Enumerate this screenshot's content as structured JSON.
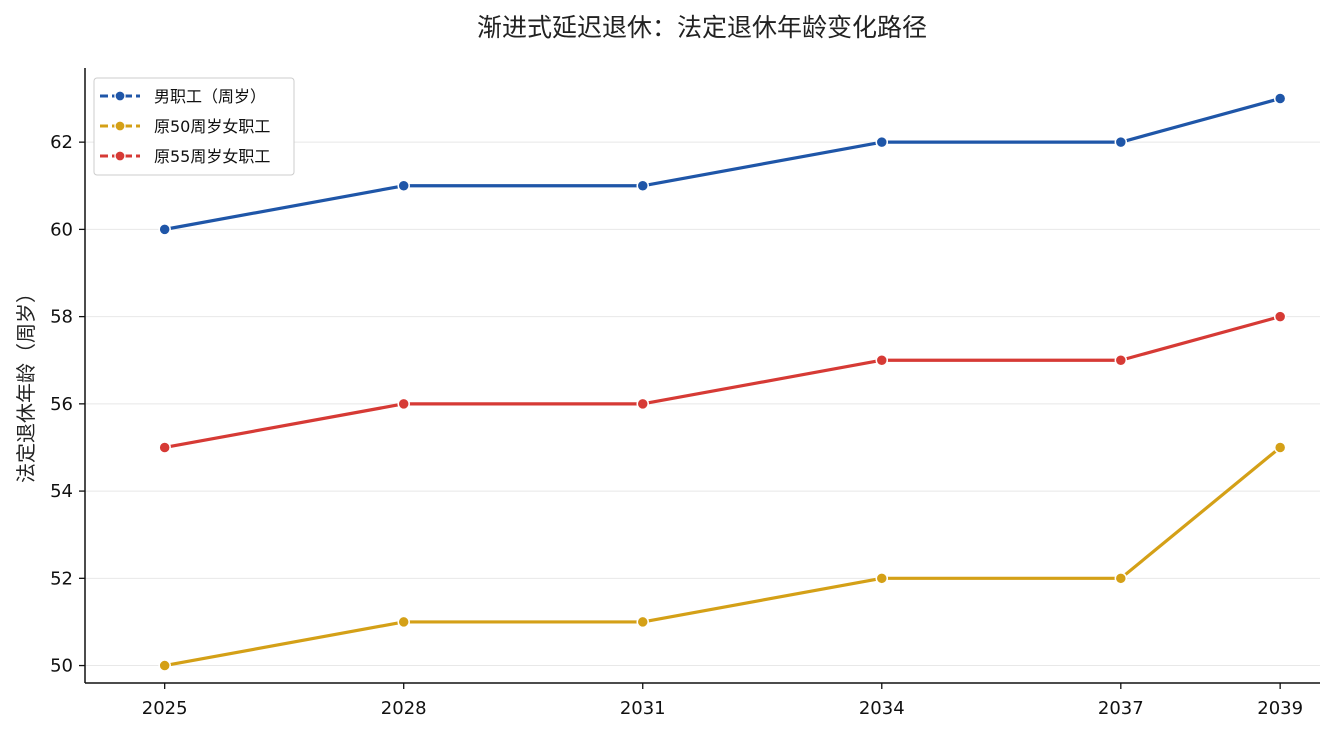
{
  "chart_data": {
    "type": "line",
    "title": "渐进式延迟退休：法定退休年龄变化路径",
    "xlabel": "",
    "ylabel": "法定退休年龄（周岁）",
    "x": [
      2025,
      2028,
      2031,
      2034,
      2037,
      2039
    ],
    "xlim": [
      2024,
      2039.5
    ],
    "ylim": [
      49.6,
      63.7
    ],
    "yticks": [
      50,
      52,
      54,
      56,
      58,
      60,
      62
    ],
    "grid": "horizontal",
    "legend_position": "top-left",
    "series": [
      {
        "name": "男职工（周岁）",
        "color": "#1f56a8",
        "values": [
          60,
          61,
          61,
          62,
          62,
          63
        ]
      },
      {
        "name": "原50周岁女职工",
        "color": "#d4a017",
        "values": [
          50,
          51,
          51,
          52,
          52,
          55
        ]
      },
      {
        "name": "原55周岁女职工",
        "color": "#d63a35",
        "values": [
          55,
          56,
          56,
          57,
          57,
          58
        ]
      }
    ]
  }
}
